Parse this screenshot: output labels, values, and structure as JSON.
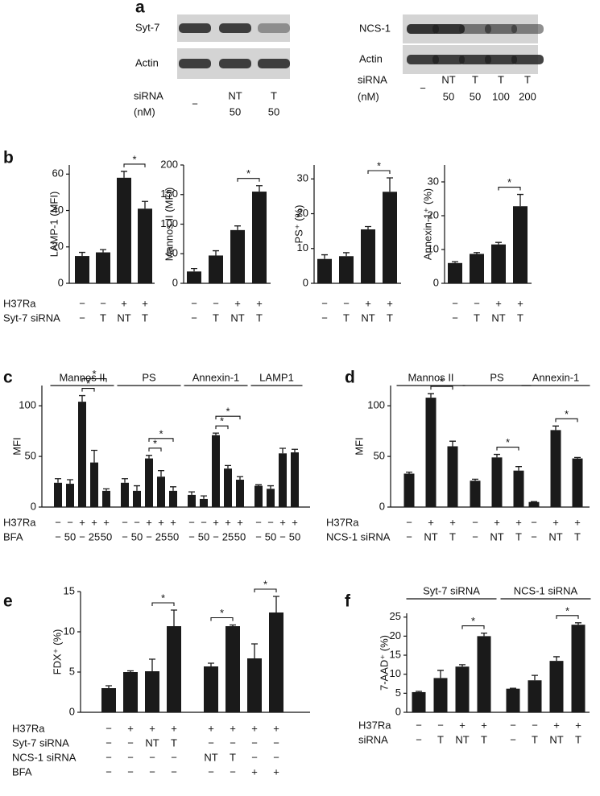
{
  "panel_labels": [
    "a",
    "b",
    "c",
    "d",
    "e",
    "f"
  ],
  "blots": [
    {
      "rows": [
        "Syt-7",
        "Actin"
      ],
      "lane_header": [
        "siRNA",
        "(nM)"
      ],
      "lanes": [
        [
          "−"
        ],
        [
          "NT",
          "50"
        ],
        [
          "T",
          "50"
        ]
      ]
    },
    {
      "rows": [
        "NCS-1",
        "Actin"
      ],
      "lane_header": [
        "siRNA",
        "(nM)"
      ],
      "lanes": [
        [
          "−"
        ],
        [
          "NT",
          "50"
        ],
        [
          "T",
          "50"
        ],
        [
          "T",
          "100"
        ],
        [
          "T",
          "200"
        ]
      ]
    }
  ],
  "chart_data": [
    {
      "type": "bar",
      "ylabel": "LAMP-1 (MFI)",
      "ylim": [
        0,
        65
      ],
      "yticks": [
        0,
        20,
        40,
        60
      ],
      "color": "#1a1a1a",
      "condition_labels": [
        "H37Ra",
        "Syt-7 siRNA"
      ],
      "groups": [
        {
          "values": [
            15,
            17,
            58,
            41
          ],
          "errors": [
            2,
            1.5,
            3.5,
            4
          ],
          "conditions": [
            [
              "−",
              "−",
              "+",
              "+"
            ],
            [
              "−",
              "T",
              "NT",
              "T"
            ]
          ],
          "brackets": [
            {
              "pair": [
                2,
                3
              ],
              "label": "*"
            }
          ]
        }
      ]
    },
    {
      "type": "bar",
      "ylabel": "Mannos II (MFI)",
      "ylim": [
        0,
        200
      ],
      "yticks": [
        0,
        50,
        100,
        150,
        200
      ],
      "color": "#1a1a1a",
      "groups": [
        {
          "values": [
            20,
            47,
            90,
            155
          ],
          "errors": [
            5,
            8,
            7,
            10
          ],
          "conditions": [
            [
              "−",
              "−",
              "+",
              "+"
            ],
            [
              "−",
              "T",
              "NT",
              "T"
            ]
          ],
          "brackets": [
            {
              "pair": [
                2,
                3
              ],
              "label": "*"
            }
          ]
        }
      ]
    },
    {
      "type": "bar",
      "ylabel": "PS⁺ (%)",
      "ylim": [
        0,
        34
      ],
      "yticks": [
        0,
        10,
        20,
        30
      ],
      "color": "#1a1a1a",
      "groups": [
        {
          "values": [
            7,
            7.8,
            15.5,
            26.3
          ],
          "errors": [
            1.2,
            1,
            0.8,
            4
          ],
          "conditions": [
            [
              "−",
              "−",
              "+",
              "+"
            ],
            [
              "−",
              "T",
              "NT",
              "T"
            ]
          ],
          "brackets": [
            {
              "pair": [
                2,
                3
              ],
              "label": "*"
            }
          ]
        }
      ]
    },
    {
      "type": "bar",
      "ylabel": "Annexin-1⁺ (%)",
      "ylim": [
        0,
        35
      ],
      "yticks": [
        0,
        10,
        20,
        30
      ],
      "color": "#1a1a1a",
      "groups": [
        {
          "values": [
            6,
            8.7,
            11.5,
            22.8
          ],
          "errors": [
            0.4,
            0.4,
            0.6,
            3.5
          ],
          "conditions": [
            [
              "−",
              "−",
              "+",
              "+"
            ],
            [
              "−",
              "T",
              "NT",
              "T"
            ]
          ],
          "brackets": [
            {
              "pair": [
                2,
                3
              ],
              "label": "*"
            }
          ]
        }
      ]
    },
    {
      "type": "bar",
      "ylabel": "MFI",
      "ylim": [
        0,
        120
      ],
      "yticks": [
        0,
        50,
        100
      ],
      "color": "#1a1a1a",
      "condition_labels": [
        "H37Ra",
        "BFA"
      ],
      "groups": [
        {
          "name": "Mannos II",
          "values": [
            24,
            23,
            104,
            44,
            16
          ],
          "errors": [
            4,
            4,
            6,
            12,
            2
          ],
          "conditions": [
            [
              "−",
              "−",
              "+",
              "+",
              "+"
            ],
            [
              "−",
              "50",
              "−",
              "25",
              "50"
            ]
          ],
          "brackets": [
            {
              "pair": [
                2,
                3
              ],
              "label": "*"
            },
            {
              "pair": [
                2,
                4
              ],
              "label": "*"
            }
          ]
        },
        {
          "name": "PS",
          "values": [
            24,
            16,
            48,
            30,
            16
          ],
          "errors": [
            4,
            5,
            3,
            6,
            4
          ],
          "conditions": [
            [
              "−",
              "−",
              "+",
              "+",
              "+"
            ],
            [
              "−",
              "50",
              "−",
              "25",
              "50"
            ]
          ],
          "brackets": [
            {
              "pair": [
                2,
                3
              ],
              "label": "*"
            },
            {
              "pair": [
                2,
                4
              ],
              "label": "*"
            }
          ]
        },
        {
          "name": "Annexin-1",
          "values": [
            12,
            8,
            71,
            38,
            27
          ],
          "errors": [
            3,
            3,
            2,
            3,
            3
          ],
          "conditions": [
            [
              "−",
              "−",
              "+",
              "+",
              "+"
            ],
            [
              "−",
              "50",
              "−",
              "25",
              "50"
            ]
          ],
          "brackets": [
            {
              "pair": [
                2,
                3
              ],
              "label": "*"
            },
            {
              "pair": [
                2,
                4
              ],
              "label": "*"
            }
          ]
        },
        {
          "name": "LAMP1",
          "values": [
            21,
            18,
            53,
            54
          ],
          "errors": [
            1,
            3,
            5,
            3
          ],
          "conditions": [
            [
              "−",
              "−",
              "+",
              "+"
            ],
            [
              "−",
              "50",
              "−",
              "50"
            ]
          ],
          "brackets": []
        }
      ]
    },
    {
      "type": "bar",
      "ylabel": "MFI",
      "ylim": [
        0,
        120
      ],
      "yticks": [
        0,
        50,
        100
      ],
      "color": "#1a1a1a",
      "condition_labels": [
        "H37Ra",
        "NCS-1 siRNA"
      ],
      "groups": [
        {
          "name": "Mannos II",
          "values": [
            33,
            108,
            60
          ],
          "errors": [
            1.5,
            4,
            5
          ],
          "conditions": [
            [
              "−",
              "+",
              "+"
            ],
            [
              "−",
              "NT",
              "T"
            ]
          ],
          "brackets": [
            {
              "pair": [
                1,
                2
              ],
              "label": "*"
            }
          ]
        },
        {
          "name": "PS",
          "values": [
            26,
            49,
            36
          ],
          "errors": [
            1.5,
            3,
            4
          ],
          "conditions": [
            [
              "−",
              "+",
              "+"
            ],
            [
              "−",
              "NT",
              "T"
            ]
          ],
          "brackets": [
            {
              "pair": [
                1,
                2
              ],
              "label": "*"
            }
          ]
        },
        {
          "name": "Annexin-1",
          "values": [
            5,
            76,
            48
          ],
          "errors": [
            0.3,
            4,
            1
          ],
          "conditions": [
            [
              "−",
              "+",
              "+"
            ],
            [
              "−",
              "NT",
              "T"
            ]
          ],
          "brackets": [
            {
              "pair": [
                1,
                2
              ],
              "label": "*"
            }
          ]
        }
      ]
    },
    {
      "type": "bar",
      "ylabel": "FDX⁺ (%)",
      "ylim": [
        0,
        15
      ],
      "yticks": [
        0,
        5,
        10,
        15
      ],
      "color": "#1a1a1a",
      "condition_labels": [
        "H37Ra",
        "Syt-7 siRNA",
        "NCS-1 siRNA",
        "BFA"
      ],
      "groups": [
        {
          "values": [
            3,
            5,
            5.1,
            10.7
          ],
          "errors": [
            0.3,
            0.15,
            1.5,
            2
          ],
          "conditions": [
            [
              "−",
              "+",
              "+",
              "+"
            ],
            [
              "−",
              "−",
              "NT",
              "T"
            ],
            [
              "−",
              "−",
              "−",
              "−"
            ],
            [
              "−",
              "−",
              "−",
              "−"
            ]
          ],
          "brackets": [
            {
              "pair": [
                2,
                3
              ],
              "label": "*"
            }
          ]
        },
        {
          "values": [
            5.7,
            10.7,
            6.7,
            12.4
          ],
          "errors": [
            0.4,
            0.15,
            1.8,
            2
          ],
          "conditions": [
            [
              "+",
              "+",
              "+",
              "+"
            ],
            [
              "−",
              "−",
              "−",
              "−"
            ],
            [
              "NT",
              "T",
              "−",
              "−"
            ],
            [
              "−",
              "−",
              "+",
              "+"
            ]
          ],
          "brackets": [
            {
              "pair": [
                0,
                1
              ],
              "label": "*"
            },
            {
              "pair": [
                2,
                3
              ],
              "label": "*"
            }
          ]
        }
      ]
    },
    {
      "type": "bar",
      "ylabel": "7-AAD⁺ (%)",
      "ylim": [
        0,
        26
      ],
      "yticks": [
        0,
        5,
        10,
        15,
        20,
        25
      ],
      "color": "#1a1a1a",
      "condition_labels": [
        "H37Ra",
        "siRNA"
      ],
      "groups": [
        {
          "name": "Syt-7 siRNA",
          "values": [
            5.3,
            9,
            12,
            20
          ],
          "errors": [
            0.2,
            2,
            0.5,
            0.8
          ],
          "conditions": [
            [
              "−",
              "−",
              "+",
              "+"
            ],
            [
              "−",
              "T",
              "NT",
              "T"
            ]
          ],
          "brackets": [
            {
              "pair": [
                2,
                3
              ],
              "label": "*"
            }
          ]
        },
        {
          "name": "NCS-1 siRNA",
          "values": [
            6.2,
            8.4,
            13.5,
            23
          ],
          "errors": [
            0.1,
            1.3,
            1.1,
            0.5
          ],
          "conditions": [
            [
              "−",
              "−",
              "+",
              "+"
            ],
            [
              "−",
              "T",
              "NT",
              "T"
            ]
          ],
          "brackets": [
            {
              "pair": [
                2,
                3
              ],
              "label": "*"
            }
          ]
        }
      ]
    }
  ]
}
